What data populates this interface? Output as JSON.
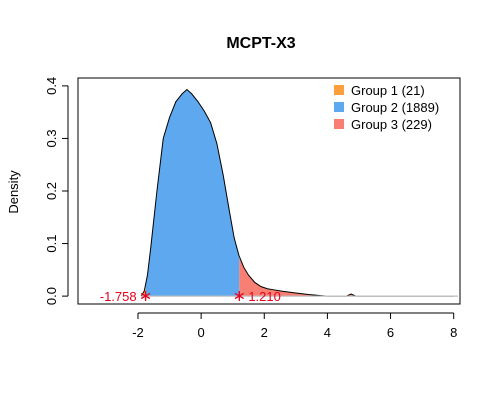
{
  "chart_data": {
    "type": "area",
    "title": "MCPT-X3",
    "xlabel": "",
    "ylabel": "Density",
    "xlim": [
      -3.9,
      8.2
    ],
    "ylim": [
      -0.015,
      0.415
    ],
    "x_ticks": [
      -2,
      0,
      2,
      4,
      6,
      8
    ],
    "x_tick_labels": [
      "-2",
      "0",
      "2",
      "4",
      "6",
      "8"
    ],
    "y_ticks": [
      0.0,
      0.1,
      0.2,
      0.3,
      0.4
    ],
    "y_tick_labels": [
      "0.0",
      "0.1",
      "0.2",
      "0.3",
      "0.4"
    ],
    "density": {
      "x": [
        -1.9,
        -1.8,
        -1.7,
        -1.6,
        -1.4,
        -1.2,
        -1.0,
        -0.8,
        -0.6,
        -0.45,
        -0.3,
        -0.1,
        0.1,
        0.3,
        0.5,
        0.7,
        0.9,
        1.05,
        1.2,
        1.35,
        1.5,
        1.7,
        1.9,
        2.1,
        2.3,
        2.6,
        3.0,
        3.4,
        3.8,
        4.0,
        4.6,
        4.75,
        4.9,
        5.1,
        8.0
      ],
      "y": [
        0.0,
        0.01,
        0.04,
        0.09,
        0.2,
        0.3,
        0.34,
        0.37,
        0.385,
        0.393,
        0.385,
        0.37,
        0.352,
        0.33,
        0.29,
        0.23,
        0.16,
        0.11,
        0.077,
        0.055,
        0.04,
        0.026,
        0.018,
        0.014,
        0.012,
        0.009,
        0.006,
        0.003,
        0.001,
        0.0,
        0.0,
        0.004,
        0.0,
        0.0,
        0.0
      ]
    },
    "series": [
      {
        "name": "Group 1 (21)",
        "color": "#FF9E3D",
        "range": [
          -1.9,
          -1.758
        ]
      },
      {
        "name": "Group 2 (1889)",
        "color": "#5DA8EE",
        "range": [
          -1.758,
          1.21
        ]
      },
      {
        "name": "Group 3 (229)",
        "color": "#F77F74",
        "range": [
          1.21,
          8.0
        ]
      }
    ],
    "cutpoints": [
      {
        "value": -1.758,
        "label": "-1.758",
        "color": "#E8001C"
      },
      {
        "value": 1.21,
        "label": "1.210",
        "color": "#E8001C"
      }
    ],
    "legend_position": "top-right",
    "grid": false
  }
}
